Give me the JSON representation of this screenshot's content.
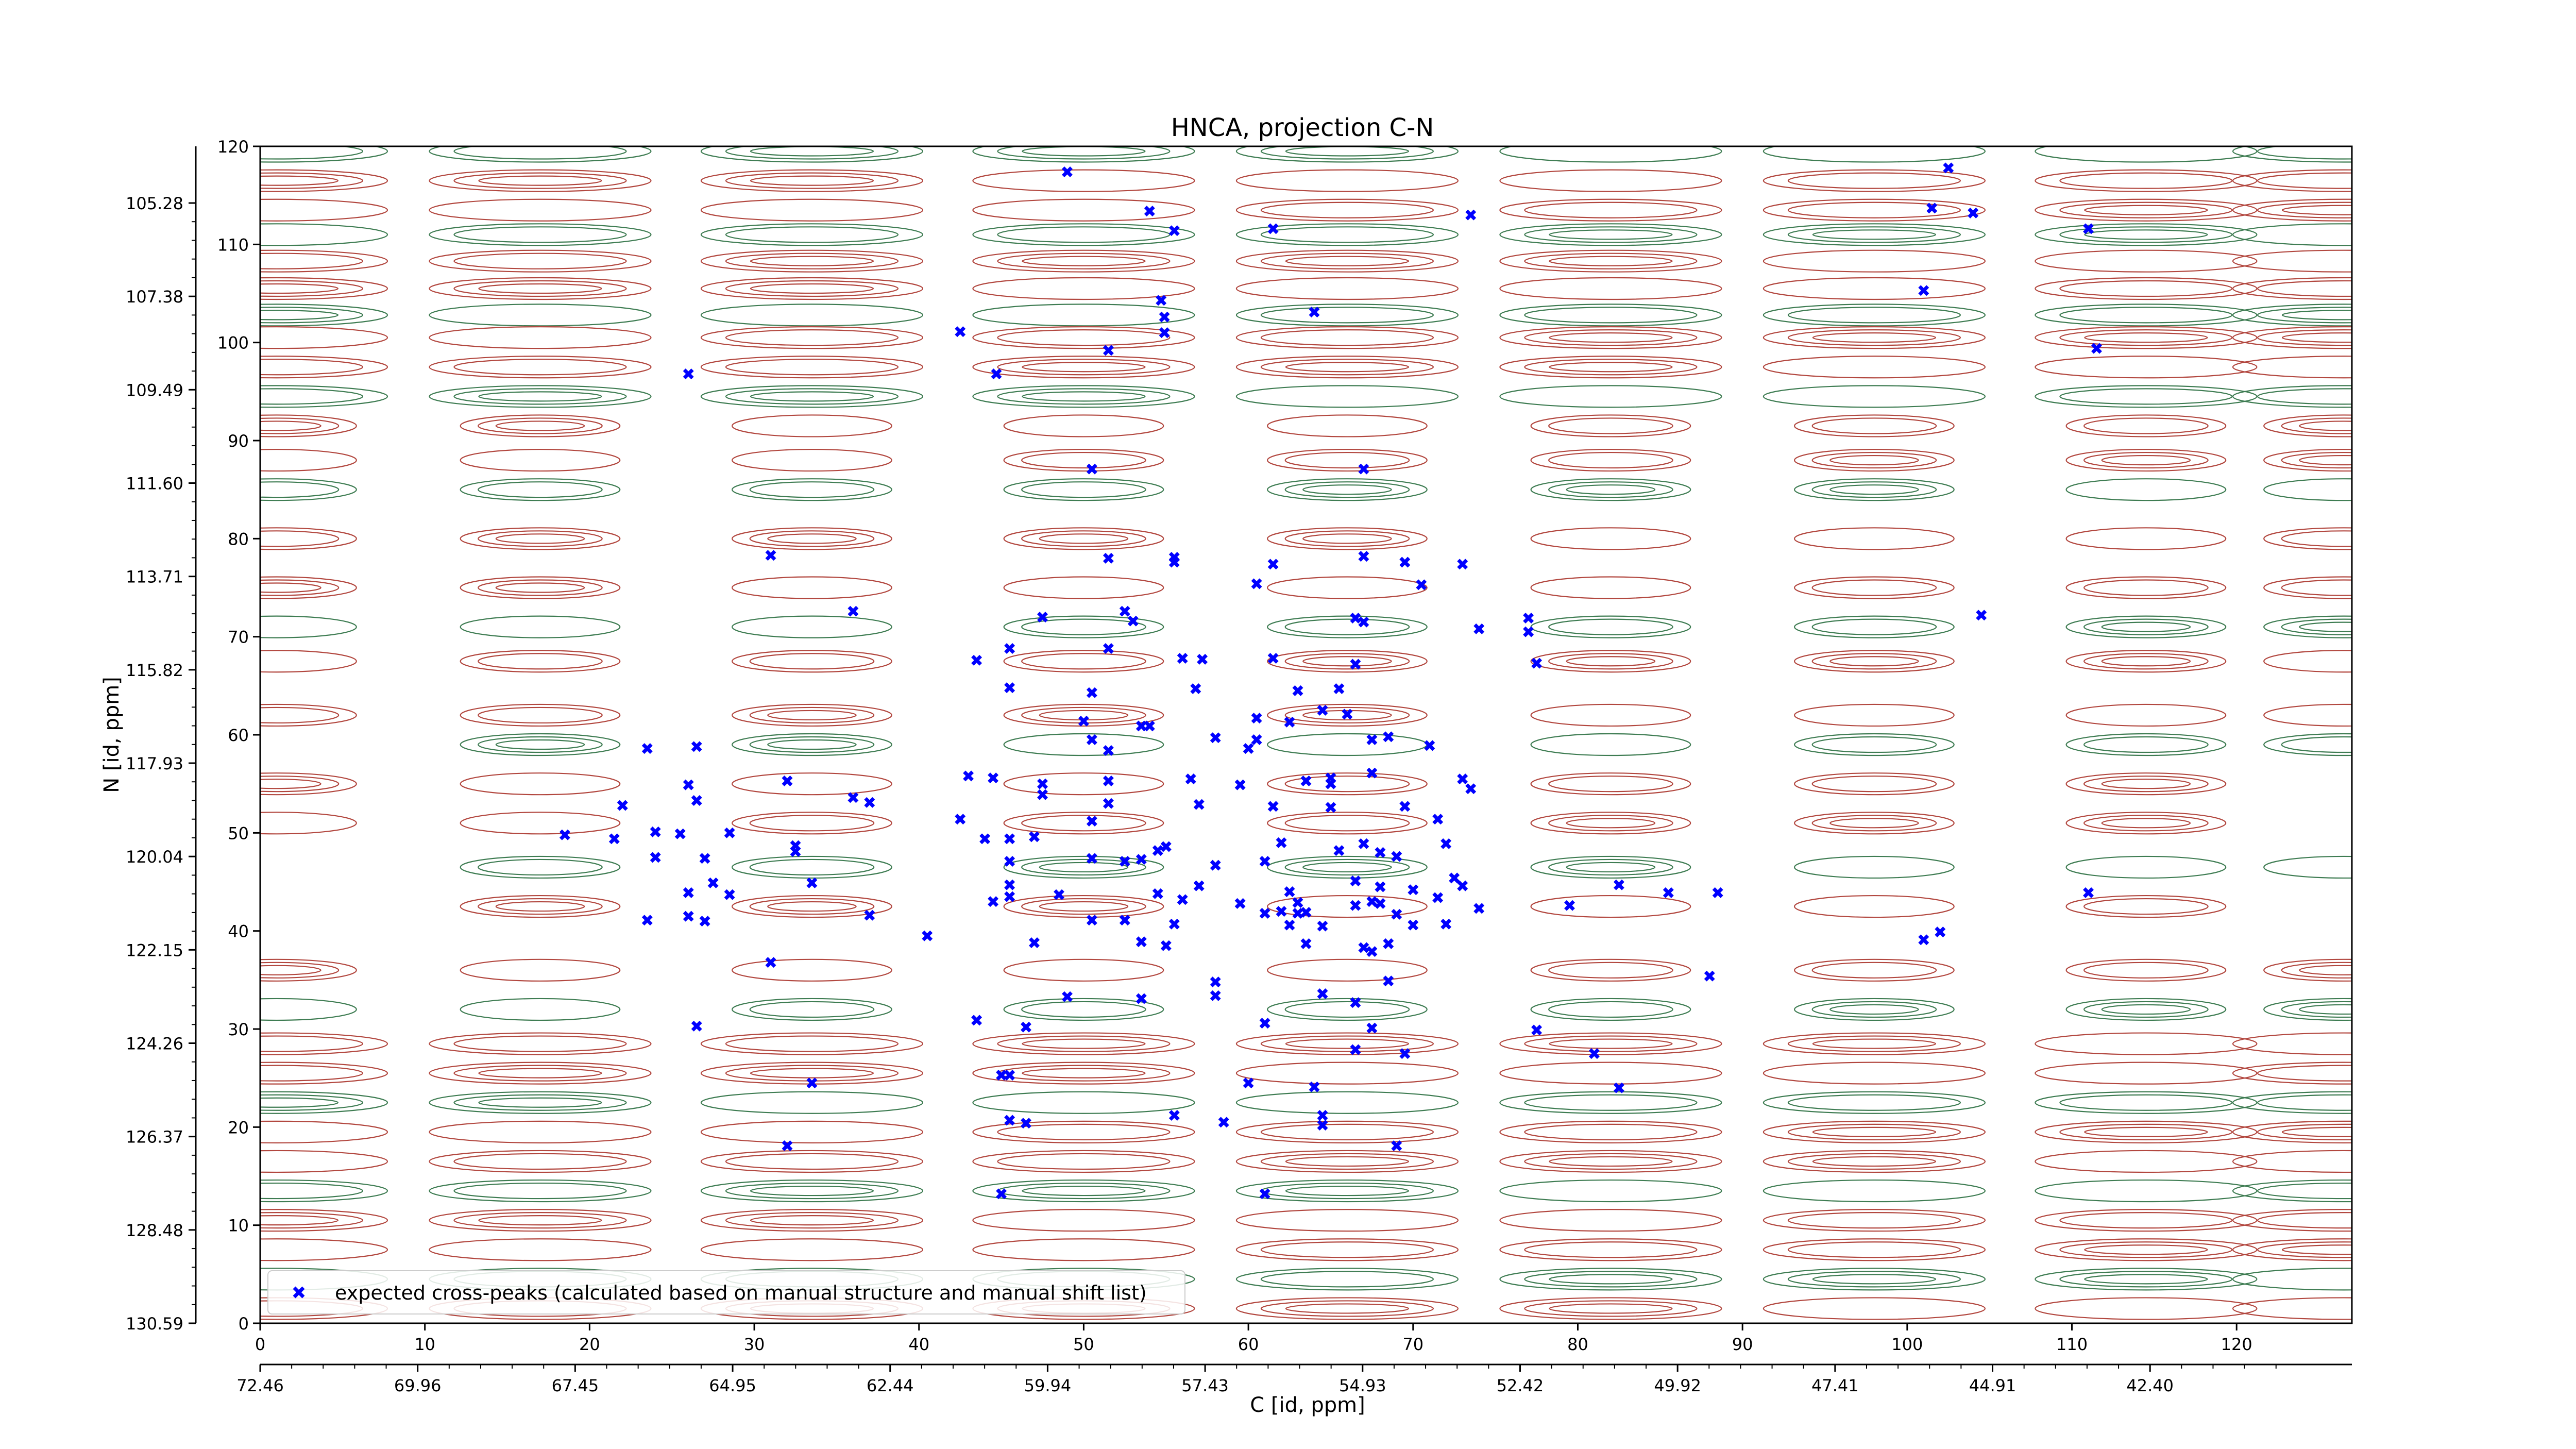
{
  "chart_data": {
    "type": "scatter",
    "title": "HNCA, projection C-N",
    "xlabel": "C [id, ppm]",
    "ylabel": "N [id, ppm]",
    "xlim": [
      0,
      127
    ],
    "ylim": [
      0,
      120
    ],
    "grid": false,
    "legend_position": "bottom-left",
    "x_ticks": [
      0,
      10,
      20,
      30,
      40,
      50,
      60,
      70,
      80,
      90,
      100,
      110,
      120
    ],
    "y_ticks": [
      0,
      10,
      20,
      30,
      40,
      50,
      60,
      70,
      80,
      90,
      100,
      110,
      120
    ],
    "x_ppm_ticks": [
      "72.46",
      "69.96",
      "67.45",
      "64.95",
      "62.44",
      "59.94",
      "57.43",
      "54.93",
      "52.42",
      "49.92",
      "47.41",
      "44.91",
      "42.40"
    ],
    "y_ppm_ticks": [
      "130.59",
      "128.48",
      "126.37",
      "124.26",
      "122.15",
      "120.04",
      "117.93",
      "115.82",
      "113.71",
      "111.60",
      "109.49",
      "107.38",
      "105.28"
    ],
    "colors": {
      "marker": "#0000ff",
      "contour_positive": "#b2473f",
      "contour_negative": "#3e7c52"
    },
    "contours": {
      "columns_x": [
        1,
        17,
        33.5,
        50,
        66,
        82,
        98,
        114.5,
        126.5
      ],
      "row_y": [
        122,
        119.5,
        116.5,
        113.5,
        111,
        108.3,
        105.5,
        102.8,
        100.5,
        97.5,
        94.5,
        91.5,
        88,
        85,
        80,
        75,
        71,
        67.5,
        62,
        59,
        55,
        51,
        46.5,
        42.5,
        36,
        32,
        28.5,
        25.5,
        22.5,
        19.5,
        16.5,
        13.5,
        10.5,
        7.5,
        4.5,
        1.5
      ]
    },
    "series": [
      {
        "name": "expected cross-peaks (calculated based on manual structure and manual shift list)",
        "marker": "x",
        "points": [
          [
            49,
            117.4
          ],
          [
            54,
            113.4
          ],
          [
            55.5,
            111.4
          ],
          [
            61.5,
            111.6
          ],
          [
            73.5,
            113
          ],
          [
            102.5,
            117.8
          ],
          [
            101.5,
            113.7
          ],
          [
            104,
            113.2
          ],
          [
            111,
            111.6
          ],
          [
            54.7,
            104.3
          ],
          [
            54.9,
            102.6
          ],
          [
            54.9,
            101
          ],
          [
            51.5,
            99.2
          ],
          [
            42.5,
            101.1
          ],
          [
            26,
            96.8
          ],
          [
            44.7,
            96.8
          ],
          [
            64,
            103.1
          ],
          [
            101,
            105.3
          ],
          [
            111.5,
            99.4
          ],
          [
            50.5,
            87.1
          ],
          [
            67,
            87.1
          ],
          [
            31,
            78.3
          ],
          [
            51.5,
            78
          ],
          [
            55.5,
            78.1
          ],
          [
            55.5,
            77.6
          ],
          [
            61.5,
            77.4
          ],
          [
            67,
            78.2
          ],
          [
            69.5,
            77.6
          ],
          [
            73,
            77.4
          ],
          [
            60.5,
            75.4
          ],
          [
            70.5,
            75.3
          ],
          [
            36,
            72.6
          ],
          [
            47.5,
            72
          ],
          [
            52.5,
            72.6
          ],
          [
            53,
            71.6
          ],
          [
            66.5,
            71.9
          ],
          [
            67,
            71.5
          ],
          [
            74,
            70.8
          ],
          [
            77,
            71.9
          ],
          [
            77,
            70.5
          ],
          [
            104.5,
            72.2
          ],
          [
            43.5,
            67.6
          ],
          [
            45.5,
            68.8
          ],
          [
            51.5,
            68.8
          ],
          [
            56,
            67.8
          ],
          [
            57.2,
            67.7
          ],
          [
            61.5,
            67.8
          ],
          [
            66.5,
            67.2
          ],
          [
            77.5,
            67.3
          ],
          [
            45.5,
            64.8
          ],
          [
            50.5,
            64.3
          ],
          [
            56.8,
            64.7
          ],
          [
            63,
            64.5
          ],
          [
            65.5,
            64.7
          ],
          [
            60.5,
            61.7
          ],
          [
            50,
            61.4
          ],
          [
            53.5,
            60.9
          ],
          [
            54,
            60.9
          ],
          [
            62.5,
            61.3
          ],
          [
            64.5,
            62.5
          ],
          [
            66,
            62.1
          ],
          [
            58,
            59.7
          ],
          [
            60.5,
            59.5
          ],
          [
            50.5,
            59.5
          ],
          [
            60,
            58.6
          ],
          [
            23.5,
            58.6
          ],
          [
            26.5,
            58.8
          ],
          [
            51.5,
            58.4
          ],
          [
            67.5,
            59.5
          ],
          [
            68.5,
            59.8
          ],
          [
            71,
            58.9
          ],
          [
            43,
            55.8
          ],
          [
            44.5,
            55.6
          ],
          [
            56.5,
            55.5
          ],
          [
            63.5,
            55.3
          ],
          [
            65,
            55.6
          ],
          [
            67.5,
            56.1
          ],
          [
            73,
            55.5
          ],
          [
            32,
            55.3
          ],
          [
            26,
            54.9
          ],
          [
            47.5,
            55
          ],
          [
            51.5,
            55.3
          ],
          [
            59.5,
            54.9
          ],
          [
            65,
            55
          ],
          [
            73.5,
            54.5
          ],
          [
            36,
            53.6
          ],
          [
            37,
            53.1
          ],
          [
            47.5,
            53.9
          ],
          [
            22,
            52.8
          ],
          [
            26.5,
            53.3
          ],
          [
            51.5,
            53
          ],
          [
            57,
            52.9
          ],
          [
            61.5,
            52.7
          ],
          [
            65,
            52.6
          ],
          [
            69.5,
            52.7
          ],
          [
            42.5,
            51.4
          ],
          [
            50.5,
            51.2
          ],
          [
            71.5,
            51.4
          ],
          [
            18.5,
            49.8
          ],
          [
            24,
            50.1
          ],
          [
            25.5,
            49.9
          ],
          [
            28.5,
            50
          ],
          [
            44,
            49.4
          ],
          [
            45.5,
            49.4
          ],
          [
            47,
            49.6
          ],
          [
            55,
            48.6
          ],
          [
            62,
            49
          ],
          [
            67,
            48.9
          ],
          [
            72,
            48.9
          ],
          [
            21.5,
            49.4
          ],
          [
            32.5,
            48.7
          ],
          [
            32.5,
            48.1
          ],
          [
            54.5,
            48.2
          ],
          [
            65.5,
            48.2
          ],
          [
            24,
            47.5
          ],
          [
            27,
            47.4
          ],
          [
            45.5,
            47.1
          ],
          [
            50.5,
            47.4
          ],
          [
            52.5,
            47.1
          ],
          [
            53.5,
            47.3
          ],
          [
            58,
            46.7
          ],
          [
            61,
            47.1
          ],
          [
            68,
            48
          ],
          [
            69,
            47.6
          ],
          [
            33.5,
            44.9
          ],
          [
            45.5,
            44.7
          ],
          [
            27.5,
            44.9
          ],
          [
            26,
            43.9
          ],
          [
            44.5,
            43
          ],
          [
            57,
            44.6
          ],
          [
            62.5,
            44
          ],
          [
            66.5,
            45.1
          ],
          [
            68,
            44.5
          ],
          [
            72.5,
            45.4
          ],
          [
            73,
            44.6
          ],
          [
            28.5,
            43.7
          ],
          [
            45.5,
            43.5
          ],
          [
            48.5,
            43.7
          ],
          [
            54.5,
            43.8
          ],
          [
            56,
            43.2
          ],
          [
            59.5,
            42.8
          ],
          [
            63,
            42.9
          ],
          [
            66.5,
            42.6
          ],
          [
            67.5,
            43
          ],
          [
            68,
            42.8
          ],
          [
            70,
            44.2
          ],
          [
            71.5,
            43.4
          ],
          [
            74,
            42.3
          ],
          [
            79.5,
            42.6
          ],
          [
            82.5,
            44.7
          ],
          [
            85.5,
            43.9
          ],
          [
            88.5,
            43.9
          ],
          [
            111,
            43.9
          ],
          [
            26,
            41.5
          ],
          [
            23.5,
            41.1
          ],
          [
            27,
            41
          ],
          [
            37,
            41.6
          ],
          [
            62,
            42
          ],
          [
            63.5,
            41.9
          ],
          [
            61,
            41.8
          ],
          [
            63,
            41.8
          ],
          [
            50.5,
            41.1
          ],
          [
            52.5,
            41.1
          ],
          [
            55.5,
            40.7
          ],
          [
            62.5,
            40.6
          ],
          [
            64.5,
            40.5
          ],
          [
            69,
            41.7
          ],
          [
            70,
            40.6
          ],
          [
            72,
            40.7
          ],
          [
            40.5,
            39.5
          ],
          [
            47,
            38.8
          ],
          [
            53.5,
            38.9
          ],
          [
            55,
            38.5
          ],
          [
            63.5,
            38.7
          ],
          [
            67,
            38.3
          ],
          [
            67.5,
            37.9
          ],
          [
            68.5,
            38.7
          ],
          [
            101,
            39.1
          ],
          [
            102,
            39.9
          ],
          [
            31,
            36.8
          ],
          [
            58,
            34.8
          ],
          [
            68.5,
            34.9
          ],
          [
            88,
            35.4
          ],
          [
            64.5,
            33.6
          ],
          [
            49,
            33.3
          ],
          [
            53.5,
            33.1
          ],
          [
            58,
            33.4
          ],
          [
            66.5,
            32.7
          ],
          [
            43.5,
            30.9
          ],
          [
            26.5,
            30.3
          ],
          [
            46.5,
            30.2
          ],
          [
            61,
            30.6
          ],
          [
            67.5,
            30.1
          ],
          [
            77.5,
            29.9
          ],
          [
            66.5,
            27.9
          ],
          [
            69.5,
            27.5
          ],
          [
            81,
            27.5
          ],
          [
            45,
            25.3
          ],
          [
            45.5,
            25.3
          ],
          [
            33.5,
            24.5
          ],
          [
            60,
            24.5
          ],
          [
            64,
            24.1
          ],
          [
            82.5,
            24
          ],
          [
            55.5,
            21.2
          ],
          [
            45.5,
            20.7
          ],
          [
            46.5,
            20.4
          ],
          [
            58.5,
            20.5
          ],
          [
            64.5,
            21.2
          ],
          [
            64.5,
            20.2
          ],
          [
            32,
            18.1
          ],
          [
            69,
            18.1
          ],
          [
            45,
            13.2
          ],
          [
            61,
            13.2
          ]
        ]
      }
    ]
  }
}
